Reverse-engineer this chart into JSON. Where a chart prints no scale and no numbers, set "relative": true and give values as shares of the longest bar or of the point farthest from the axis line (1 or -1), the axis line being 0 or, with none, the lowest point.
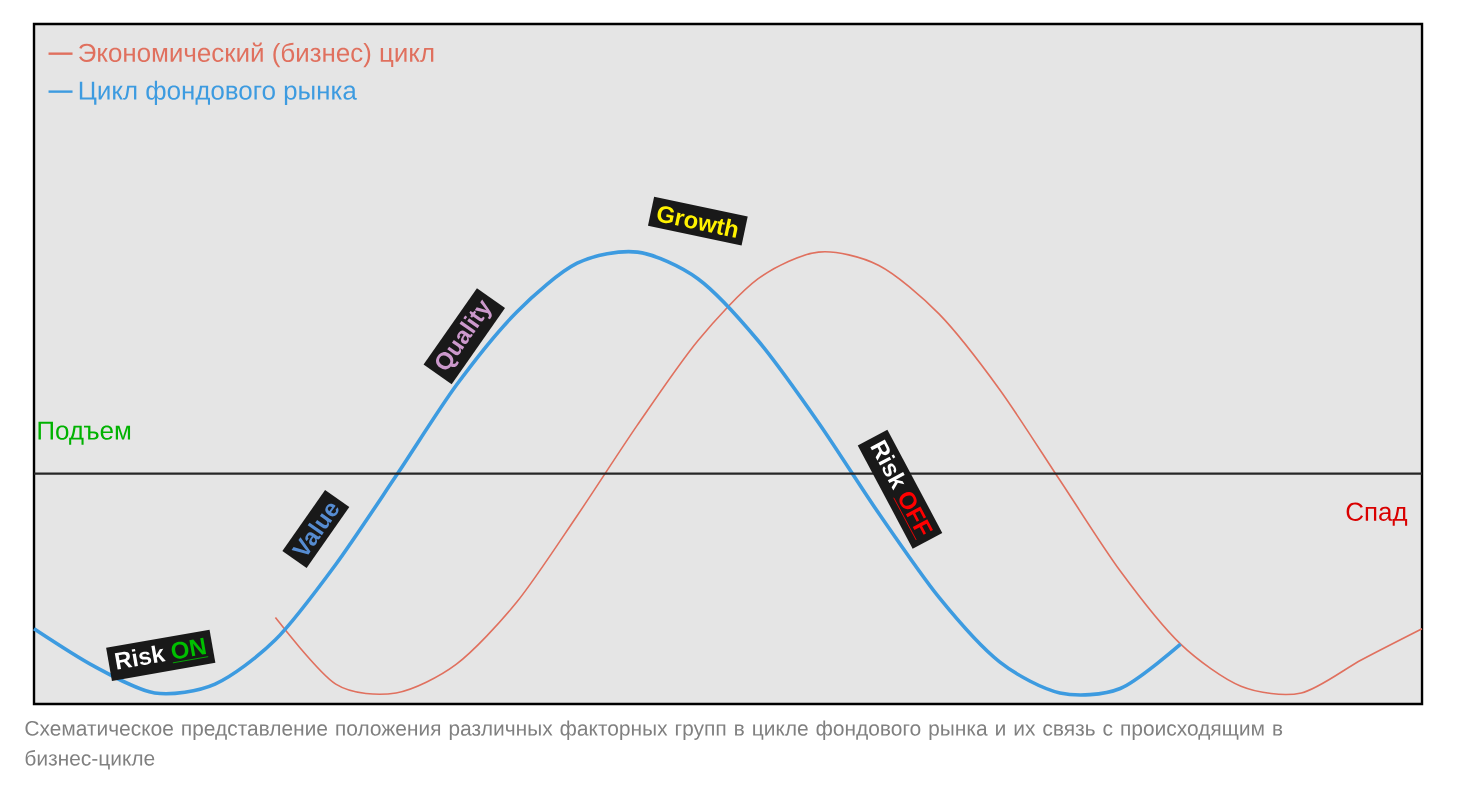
{
  "chart_data": {
    "type": "line",
    "relative": true,
    "legend": "top left",
    "categories": [
      null,
      null,
      null,
      null,
      null,
      null,
      null,
      null,
      null,
      null,
      null,
      null,
      null,
      null,
      null,
      null,
      null,
      null,
      null,
      null,
      null,
      null,
      null,
      null
    ],
    "series": [
      {
        "name": "Экономический (бизнес) цикл",
        "color": "#e0705e",
        "values": [
          null,
          null,
          null,
          null,
          -0.65,
          -0.95,
          -0.99,
          -0.86,
          -0.58,
          -0.19,
          0.22,
          0.6,
          0.88,
          1.0,
          0.94,
          0.72,
          0.38,
          -0.03,
          -0.44,
          -0.77,
          -0.96,
          -0.99,
          -0.84,
          -0.7
        ]
      },
      {
        "name": "Цикл фондового рынка",
        "color": "#3d9be0",
        "values": [
          -0.7,
          -0.87,
          -0.99,
          -0.95,
          -0.75,
          -0.41,
          -0.01,
          0.4,
          0.73,
          0.95,
          1.0,
          0.88,
          0.6,
          0.23,
          -0.18,
          -0.56,
          -0.85,
          -0.99,
          -0.97,
          -0.77,
          null,
          null,
          null,
          null
        ]
      }
    ],
    "annotations": [
      "Подъем",
      "Спад",
      "Risk",
      "ON",
      "Value",
      "Quality",
      "Growth",
      "Risk",
      "OFF",
      "Схематическое представление положения различных факторных групп в цикле фондового рынка и их связь с происходящим в бизнес-цикле"
    ]
  }
}
